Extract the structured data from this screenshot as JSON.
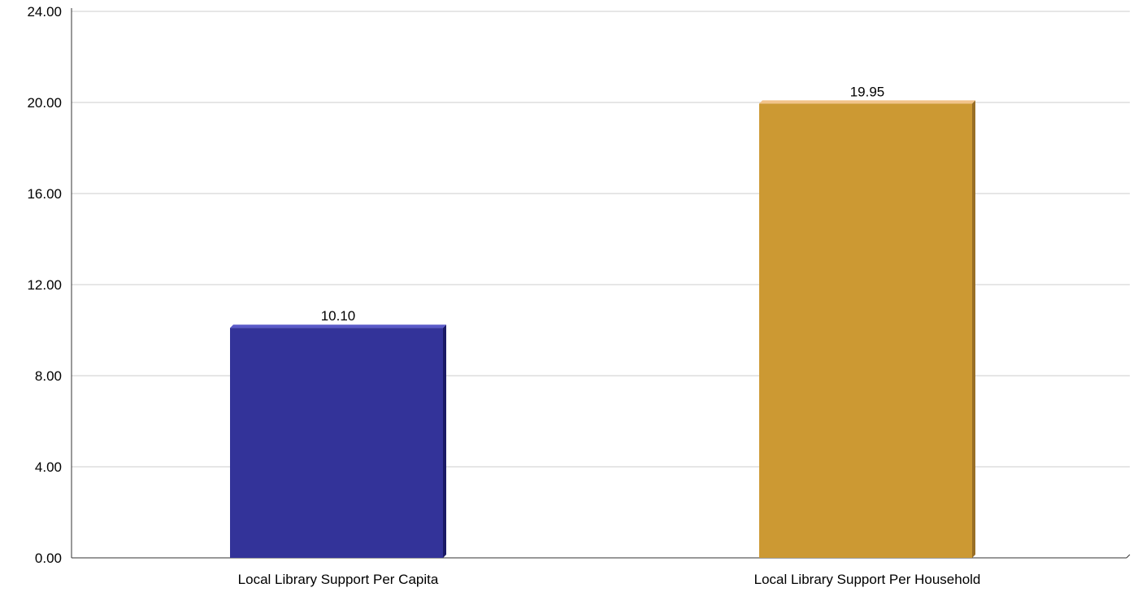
{
  "chart_data": {
    "type": "bar",
    "categories": [
      "Local Library Support Per Capita",
      "Local Library Support Per Household"
    ],
    "values": [
      10.1,
      19.95
    ],
    "data_labels": [
      "10.10",
      "19.95"
    ],
    "y_ticks": [
      "0.00",
      "4.00",
      "8.00",
      "12.00",
      "16.00",
      "20.00",
      "24.00"
    ],
    "ylim": [
      0,
      24
    ],
    "grid": true,
    "colors": [
      {
        "front": "#333399",
        "top": "#5a5ac8",
        "side": "#1a1a66"
      },
      {
        "front": "#cc9933",
        "top": "#f2c38a",
        "side": "#996f26"
      }
    ],
    "gridline_color": "#cccccc",
    "axis_color": "#333333"
  }
}
